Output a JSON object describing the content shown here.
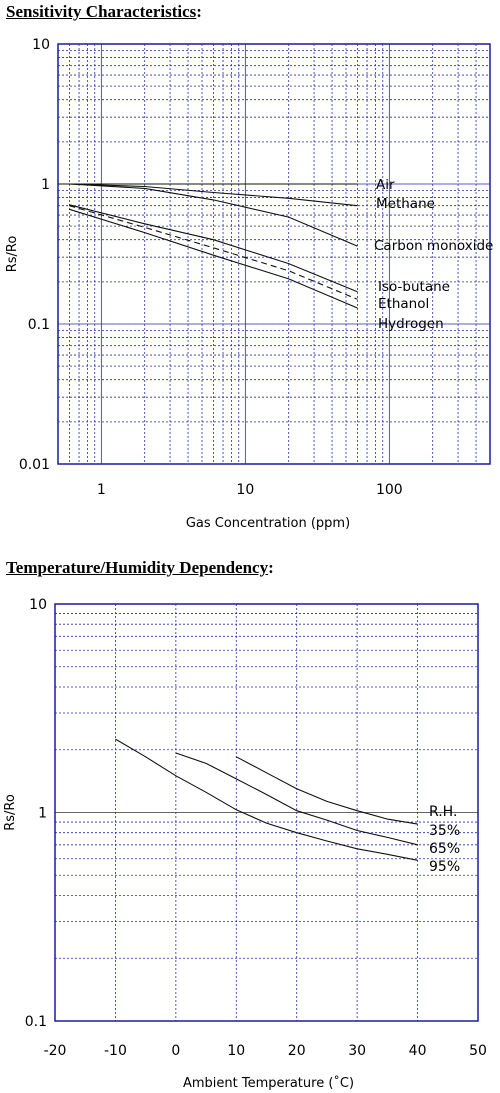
{
  "chart_data": [
    {
      "type": "line",
      "title": "Sensitivity Characteristics",
      "title_suffix": ":",
      "xlabel": "Gas Concentration (ppm)",
      "ylabel": "Rs/Ro",
      "xscale": "log",
      "yscale": "log",
      "xlim": [
        0.5,
        500
      ],
      "ylim": [
        0.01,
        10
      ],
      "x_ticks": [
        1,
        10,
        100
      ],
      "x_tick_labels": [
        "1",
        "10",
        "100"
      ],
      "y_ticks": [
        0.01,
        0.1,
        1,
        10
      ],
      "y_tick_labels": [
        "0.01",
        "0.1",
        "1",
        "10"
      ],
      "grid": true,
      "series": [
        {
          "name": "Air",
          "x": [
            0.5,
            60
          ],
          "y": [
            1.0,
            1.0
          ],
          "style": "solid"
        },
        {
          "name": "Methane",
          "x": [
            0.6,
            2,
            6,
            20,
            60
          ],
          "y": [
            1.0,
            0.96,
            0.87,
            0.79,
            0.7
          ],
          "style": "solid"
        },
        {
          "name": "Carbon monoxide",
          "x": [
            0.6,
            2,
            6,
            20,
            60
          ],
          "y": [
            1.0,
            0.93,
            0.77,
            0.58,
            0.36
          ],
          "style": "solid"
        },
        {
          "name": "Iso-butane",
          "x": [
            0.6,
            2,
            6,
            20,
            60
          ],
          "y": [
            0.71,
            0.52,
            0.4,
            0.27,
            0.17
          ],
          "style": "solid"
        },
        {
          "name": "Ethanol",
          "x": [
            0.6,
            2,
            6,
            20,
            60
          ],
          "y": [
            0.7,
            0.49,
            0.35,
            0.24,
            0.15
          ],
          "style": "dashed"
        },
        {
          "name": "Hydrogen",
          "x": [
            0.6,
            2,
            6,
            20,
            60
          ],
          "y": [
            0.66,
            0.45,
            0.31,
            0.21,
            0.13
          ],
          "style": "solid"
        }
      ]
    },
    {
      "type": "line",
      "title": "Temperature/Humidity Dependency",
      "title_suffix": ":",
      "xlabel": "Ambient Temperature (˚C)",
      "ylabel": "Rs/Ro",
      "yscale": "log",
      "xlim": [
        -20,
        50
      ],
      "ylim": [
        0.1,
        10
      ],
      "x_ticks": [
        -20,
        -10,
        0,
        10,
        20,
        30,
        40,
        50
      ],
      "x_tick_labels": [
        "-20",
        "-10",
        "0",
        "10",
        "20",
        "30",
        "40",
        "50"
      ],
      "y_ticks": [
        0.1,
        1,
        10
      ],
      "y_tick_labels": [
        "0.1",
        "1",
        "10"
      ],
      "grid": true,
      "legend_header": "R.H.",
      "series": [
        {
          "name": "35%",
          "x": [
            10,
            15,
            20,
            25,
            30,
            35,
            40
          ],
          "y": [
            1.85,
            1.55,
            1.3,
            1.13,
            1.02,
            0.93,
            0.88
          ]
        },
        {
          "name": "65%",
          "x": [
            0,
            5,
            10,
            15,
            20,
            25,
            30,
            35,
            40
          ],
          "y": [
            1.93,
            1.72,
            1.45,
            1.22,
            1.02,
            0.92,
            0.82,
            0.76,
            0.7
          ]
        },
        {
          "name": "95%",
          "x": [
            -10,
            -5,
            0,
            5,
            10,
            15,
            20,
            25,
            30,
            35,
            40
          ],
          "y": [
            2.25,
            1.85,
            1.5,
            1.25,
            1.03,
            0.89,
            0.8,
            0.73,
            0.67,
            0.63,
            0.59
          ]
        }
      ]
    }
  ]
}
